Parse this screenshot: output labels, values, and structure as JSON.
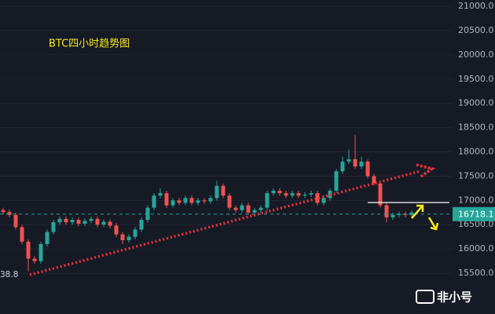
{
  "chart_data": {
    "type": "candlestick",
    "title": "BTC四小时趋势图",
    "open": [
      16800,
      16760,
      16700,
      16450,
      16150,
      15800,
      15750,
      16100,
      16350,
      16550,
      16620,
      16550,
      16600,
      16520,
      16580,
      16620,
      16500,
      16560,
      16480,
      16300,
      16180,
      16250,
      16400,
      16600,
      16850,
      17100,
      17150,
      16900,
      17000,
      16950,
      17050,
      16950,
      17000,
      16980,
      17050,
      17300,
      17100,
      16850,
      16800,
      16900,
      16750,
      16800,
      16850,
      17150,
      17200,
      17150,
      17100,
      17150,
      17100,
      17120,
      17150,
      16950,
      17050,
      17200,
      17600,
      17800,
      17850,
      17700,
      17800,
      17500,
      17350,
      16900,
      16650,
      16700,
      16720,
      16700
    ],
    "high": [
      16850,
      16810,
      16750,
      16500,
      16200,
      15850,
      16150,
      16400,
      16600,
      16670,
      16670,
      16650,
      16650,
      16630,
      16670,
      16670,
      16610,
      16610,
      16530,
      16350,
      16300,
      16450,
      16650,
      16900,
      17150,
      17250,
      17200,
      17050,
      17050,
      17100,
      17100,
      17050,
      17050,
      17100,
      17400,
      17350,
      17150,
      16900,
      16950,
      16950,
      16850,
      16900,
      17200,
      17250,
      17250,
      17200,
      17200,
      17200,
      17170,
      17200,
      17200,
      17100,
      17250,
      17650,
      17900,
      18050,
      18350,
      17900,
      17850,
      17550,
      17400,
      16950,
      16750,
      16770,
      16770,
      16800
    ],
    "low": [
      16710,
      16650,
      16400,
      16100,
      15540,
      15700,
      15700,
      16050,
      16300,
      16500,
      16500,
      16500,
      16470,
      16470,
      16530,
      16450,
      16450,
      16430,
      16250,
      16100,
      16130,
      16200,
      16350,
      16550,
      16800,
      17050,
      16850,
      16850,
      16900,
      16900,
      16900,
      16900,
      16930,
      16930,
      17000,
      17050,
      16800,
      16750,
      16750,
      16700,
      16700,
      16750,
      16800,
      17100,
      17100,
      17050,
      17050,
      17050,
      17050,
      17070,
      16900,
      16900,
      17000,
      17150,
      17550,
      17750,
      17650,
      17650,
      17450,
      17300,
      16850,
      16550,
      16600,
      16650,
      16650,
      16650
    ],
    "close": [
      16760,
      16700,
      16450,
      16150,
      15800,
      15750,
      16100,
      16350,
      16550,
      16620,
      16550,
      16600,
      16520,
      16580,
      16620,
      16500,
      16560,
      16480,
      16300,
      16180,
      16250,
      16400,
      16600,
      16850,
      17100,
      17150,
      16900,
      17000,
      16950,
      17050,
      16950,
      17000,
      16980,
      17050,
      17300,
      17100,
      16850,
      16800,
      16900,
      16750,
      16800,
      16850,
      17150,
      17200,
      17150,
      17100,
      17150,
      17100,
      17120,
      17150,
      16950,
      17050,
      17200,
      17600,
      17800,
      17850,
      17700,
      17800,
      17500,
      17350,
      16900,
      16650,
      16700,
      16720,
      16700,
      16750
    ],
    "up_color": "#26a69a",
    "down_color": "#ef5350",
    "ylim": [
      14660,
      21130
    ],
    "yticks": [
      {
        "value": 15500,
        "label": "15500.0"
      },
      {
        "value": 16000,
        "label": "16000.0"
      },
      {
        "value": 16500,
        "label": "16500.0"
      },
      {
        "value": 17000,
        "label": "17000.0"
      },
      {
        "value": 17500,
        "label": "17500.0"
      },
      {
        "value": 18000,
        "label": "18000.0"
      },
      {
        "value": 18500,
        "label": "18500.0"
      },
      {
        "value": 19000,
        "label": "19000.0"
      },
      {
        "value": 19500,
        "label": "19500.0"
      },
      {
        "value": 20000,
        "label": "20000.0"
      },
      {
        "value": 20500,
        "label": "20500.0"
      },
      {
        "value": 21000,
        "label": "21000.0"
      }
    ],
    "grid": true,
    "last_price": 16718.1,
    "low_label": "38.8",
    "watermark": "非小号"
  }
}
